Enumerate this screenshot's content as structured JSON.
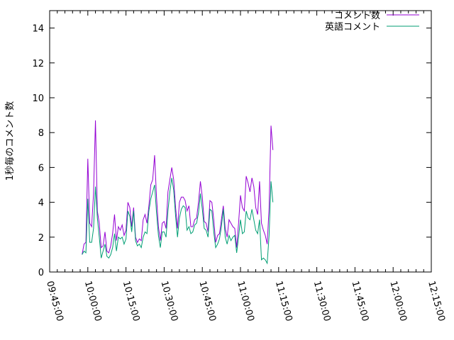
{
  "chart_data": {
    "type": "line",
    "title": "",
    "xlabel": "",
    "ylabel": "1秒毎のコメント数",
    "xlim": [
      "09:45:00",
      "12:15:00"
    ],
    "ylim": [
      0,
      15
    ],
    "x_ticks": [
      "09:45:00",
      "10:00:00",
      "10:15:00",
      "10:30:00",
      "10:45:00",
      "11:00:00",
      "11:15:00",
      "11:30:00",
      "11:45:00",
      "12:00:00",
      "12:15:00"
    ],
    "x_minor_ticks_per_major": 5,
    "y_ticks": [
      0,
      2,
      4,
      6,
      8,
      10,
      12,
      14
    ],
    "grid": false,
    "legend_position": "top-right",
    "series": [
      {
        "name": "コメント数",
        "color": "#9400d3",
        "points": [
          [
            "09:57:45",
            1.0
          ],
          [
            "09:58:30",
            1.6
          ],
          [
            "09:59:15",
            1.7
          ],
          [
            "10:00:00",
            6.5
          ],
          [
            "10:00:45",
            2.8
          ],
          [
            "10:01:30",
            2.6
          ],
          [
            "10:02:15",
            4.5
          ],
          [
            "10:03:00",
            8.7
          ],
          [
            "10:03:45",
            3.5
          ],
          [
            "10:04:30",
            2.8
          ],
          [
            "10:05:15",
            1.4
          ],
          [
            "10:06:00",
            1.5
          ],
          [
            "10:06:45",
            2.3
          ],
          [
            "10:07:30",
            1.2
          ],
          [
            "10:08:15",
            1.1
          ],
          [
            "10:09:00",
            1.5
          ],
          [
            "10:09:45",
            2.2
          ],
          [
            "10:10:30",
            3.3
          ],
          [
            "10:11:15",
            1.8
          ],
          [
            "10:12:00",
            2.6
          ],
          [
            "10:12:45",
            2.4
          ],
          [
            "10:13:30",
            2.7
          ],
          [
            "10:14:15",
            2.1
          ],
          [
            "10:15:00",
            2.4
          ],
          [
            "10:15:45",
            4.0
          ],
          [
            "10:16:30",
            3.7
          ],
          [
            "10:17:15",
            2.6
          ],
          [
            "10:18:00",
            3.7
          ],
          [
            "10:18:45",
            2.0
          ],
          [
            "10:19:30",
            1.7
          ],
          [
            "10:20:15",
            1.9
          ],
          [
            "10:21:00",
            1.8
          ],
          [
            "10:21:45",
            3.0
          ],
          [
            "10:22:30",
            3.3
          ],
          [
            "10:23:15",
            2.8
          ],
          [
            "10:24:00",
            3.8
          ],
          [
            "10:24:45",
            5.0
          ],
          [
            "10:25:30",
            5.3
          ],
          [
            "10:26:15",
            6.7
          ],
          [
            "10:27:00",
            4.3
          ],
          [
            "10:27:45",
            2.6
          ],
          [
            "10:28:30",
            1.8
          ],
          [
            "10:29:15",
            2.8
          ],
          [
            "10:30:00",
            2.9
          ],
          [
            "10:30:45",
            2.5
          ],
          [
            "10:31:30",
            4.6
          ],
          [
            "10:32:15",
            5.3
          ],
          [
            "10:33:00",
            6.0
          ],
          [
            "10:33:45",
            5.3
          ],
          [
            "10:34:30",
            3.7
          ],
          [
            "10:35:15",
            2.5
          ],
          [
            "10:36:00",
            4.0
          ],
          [
            "10:36:45",
            4.3
          ],
          [
            "10:37:30",
            4.3
          ],
          [
            "10:38:15",
            4.1
          ],
          [
            "10:39:00",
            3.5
          ],
          [
            "10:39:45",
            3.8
          ],
          [
            "10:40:30",
            2.6
          ],
          [
            "10:41:15",
            2.6
          ],
          [
            "10:42:00",
            3.0
          ],
          [
            "10:42:45",
            3.1
          ],
          [
            "10:43:30",
            4.0
          ],
          [
            "10:44:15",
            5.2
          ],
          [
            "10:45:00",
            4.3
          ],
          [
            "10:45:45",
            2.9
          ],
          [
            "10:46:30",
            2.8
          ],
          [
            "10:47:15",
            2.3
          ],
          [
            "10:48:00",
            4.1
          ],
          [
            "10:48:45",
            4.0
          ],
          [
            "10:49:30",
            3.0
          ],
          [
            "10:50:15",
            1.7
          ],
          [
            "10:51:00",
            2.1
          ],
          [
            "10:51:45",
            2.2
          ],
          [
            "10:52:30",
            3.0
          ],
          [
            "10:53:15",
            3.8
          ],
          [
            "10:54:00",
            2.5
          ],
          [
            "10:54:45",
            2.0
          ],
          [
            "10:55:30",
            3.0
          ],
          [
            "10:56:15",
            2.8
          ],
          [
            "10:57:00",
            2.6
          ],
          [
            "10:57:45",
            2.5
          ],
          [
            "10:58:30",
            1.4
          ],
          [
            "10:59:15",
            2.8
          ],
          [
            "11:00:00",
            4.4
          ],
          [
            "11:00:45",
            3.7
          ],
          [
            "11:01:30",
            3.5
          ],
          [
            "11:02:15",
            5.5
          ],
          [
            "11:03:00",
            5.1
          ],
          [
            "11:03:45",
            4.6
          ],
          [
            "11:04:30",
            5.4
          ],
          [
            "11:05:15",
            4.9
          ],
          [
            "11:06:00",
            3.7
          ],
          [
            "11:06:45",
            3.3
          ],
          [
            "11:07:30",
            5.2
          ],
          [
            "11:08:15",
            2.8
          ],
          [
            "11:09:00",
            2.4
          ],
          [
            "11:09:45",
            2.1
          ],
          [
            "11:10:30",
            1.6
          ],
          [
            "11:11:15",
            3.7
          ],
          [
            "11:12:00",
            8.4
          ],
          [
            "11:12:45",
            7.0
          ]
        ]
      },
      {
        "name": "英語コメント",
        "color": "#009e73",
        "points": [
          [
            "09:57:45",
            1.0
          ],
          [
            "09:58:30",
            1.2
          ],
          [
            "09:59:15",
            1.1
          ],
          [
            "10:00:00",
            4.2
          ],
          [
            "10:00:45",
            1.7
          ],
          [
            "10:01:30",
            1.7
          ],
          [
            "10:02:15",
            2.5
          ],
          [
            "10:03:00",
            4.9
          ],
          [
            "10:03:45",
            3.1
          ],
          [
            "10:04:30",
            2.0
          ],
          [
            "10:05:15",
            0.8
          ],
          [
            "10:06:00",
            1.2
          ],
          [
            "10:06:45",
            1.6
          ],
          [
            "10:07:30",
            0.9
          ],
          [
            "10:08:15",
            0.8
          ],
          [
            "10:09:00",
            1.0
          ],
          [
            "10:09:45",
            1.4
          ],
          [
            "10:10:30",
            2.2
          ],
          [
            "10:11:15",
            1.2
          ],
          [
            "10:12:00",
            2.0
          ],
          [
            "10:12:45",
            1.9
          ],
          [
            "10:13:30",
            2.0
          ],
          [
            "10:14:15",
            1.6
          ],
          [
            "10:15:00",
            1.9
          ],
          [
            "10:15:45",
            3.5
          ],
          [
            "10:16:30",
            3.2
          ],
          [
            "10:17:15",
            2.3
          ],
          [
            "10:18:00",
            3.5
          ],
          [
            "10:18:45",
            1.8
          ],
          [
            "10:19:30",
            1.5
          ],
          [
            "10:20:15",
            1.6
          ],
          [
            "10:21:00",
            1.4
          ],
          [
            "10:21:45",
            2.0
          ],
          [
            "10:22:30",
            2.3
          ],
          [
            "10:23:15",
            2.2
          ],
          [
            "10:24:00",
            3.5
          ],
          [
            "10:24:45",
            4.2
          ],
          [
            "10:25:30",
            4.6
          ],
          [
            "10:26:15",
            5.0
          ],
          [
            "10:27:00",
            3.4
          ],
          [
            "10:27:45",
            2.1
          ],
          [
            "10:28:30",
            1.4
          ],
          [
            "10:29:15",
            2.3
          ],
          [
            "10:30:00",
            2.3
          ],
          [
            "10:30:45",
            2.0
          ],
          [
            "10:31:30",
            3.5
          ],
          [
            "10:32:15",
            4.6
          ],
          [
            "10:33:00",
            5.4
          ],
          [
            "10:33:45",
            4.7
          ],
          [
            "10:34:30",
            3.2
          ],
          [
            "10:35:15",
            2.0
          ],
          [
            "10:36:00",
            3.1
          ],
          [
            "10:36:45",
            3.6
          ],
          [
            "10:37:30",
            3.8
          ],
          [
            "10:38:15",
            3.7
          ],
          [
            "10:39:00",
            2.4
          ],
          [
            "10:39:45",
            2.6
          ],
          [
            "10:40:30",
            2.2
          ],
          [
            "10:41:15",
            2.3
          ],
          [
            "10:42:00",
            2.7
          ],
          [
            "10:42:45",
            2.8
          ],
          [
            "10:43:30",
            3.4
          ],
          [
            "10:44:15",
            4.5
          ],
          [
            "10:45:00",
            3.6
          ],
          [
            "10:45:45",
            2.5
          ],
          [
            "10:46:30",
            2.4
          ],
          [
            "10:47:15",
            2.0
          ],
          [
            "10:48:00",
            3.6
          ],
          [
            "10:48:45",
            3.5
          ],
          [
            "10:49:30",
            2.3
          ],
          [
            "10:50:15",
            1.4
          ],
          [
            "10:51:00",
            1.6
          ],
          [
            "10:51:45",
            1.9
          ],
          [
            "10:52:30",
            2.6
          ],
          [
            "10:53:15",
            3.6
          ],
          [
            "10:54:00",
            2.0
          ],
          [
            "10:54:45",
            1.6
          ],
          [
            "10:55:30",
            2.1
          ],
          [
            "10:56:15",
            1.8
          ],
          [
            "10:57:00",
            2.0
          ],
          [
            "10:57:45",
            2.1
          ],
          [
            "10:58:30",
            1.1
          ],
          [
            "10:59:15",
            2.0
          ],
          [
            "11:00:00",
            3.0
          ],
          [
            "11:00:45",
            2.2
          ],
          [
            "11:01:30",
            2.3
          ],
          [
            "11:02:15",
            3.5
          ],
          [
            "11:03:00",
            3.1
          ],
          [
            "11:03:45",
            3.0
          ],
          [
            "11:04:30",
            3.6
          ],
          [
            "11:05:15",
            3.0
          ],
          [
            "11:06:00",
            2.4
          ],
          [
            "11:06:45",
            2.2
          ],
          [
            "11:07:30",
            3.0
          ],
          [
            "11:08:15",
            0.7
          ],
          [
            "11:09:00",
            0.8
          ],
          [
            "11:09:45",
            0.7
          ],
          [
            "11:10:30",
            0.5
          ],
          [
            "11:11:15",
            2.1
          ],
          [
            "11:12:00",
            5.2
          ],
          [
            "11:12:45",
            4.0
          ]
        ]
      }
    ]
  }
}
